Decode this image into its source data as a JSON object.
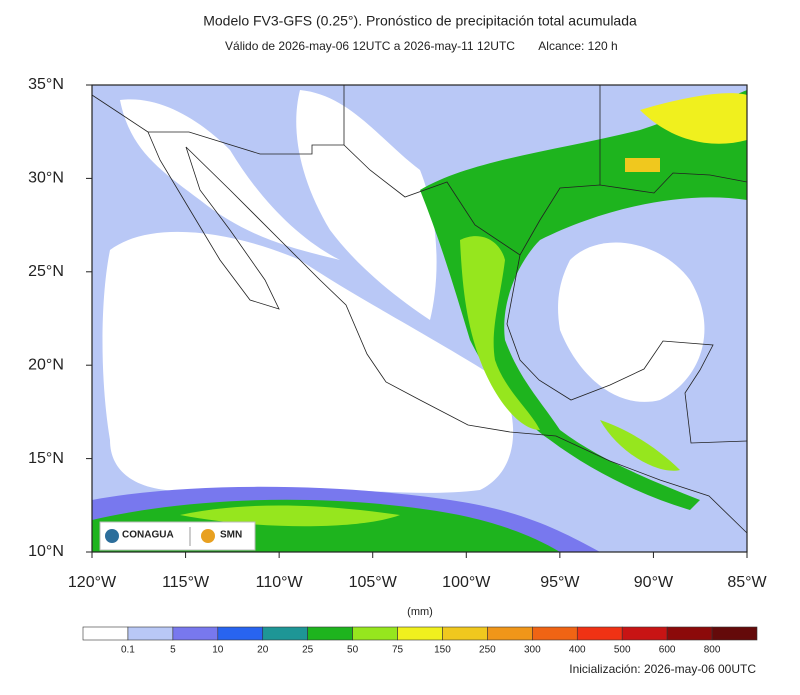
{
  "header": {
    "title": "Modelo FV3-GFS (0.25°). Pronóstico de precipitación total acumulada",
    "valid": "Válido de 2026-may-06 12UTC a 2026-may-11 12UTC",
    "range": "Alcance: 120 h"
  },
  "map": {
    "lat_labels": [
      "35°N",
      "30°N",
      "25°N",
      "20°N",
      "15°N",
      "10°N"
    ],
    "lon_labels": [
      "120°W",
      "115°W",
      "110°W",
      "105°W",
      "100°W",
      "95°W",
      "90°W",
      "85°W"
    ],
    "logos": [
      "CONAGUA",
      "SMN"
    ]
  },
  "legend": {
    "unit": "(mm)",
    "colors": [
      "#ffffff",
      "#b9c8f6",
      "#7878ee",
      "#2864f0",
      "#1e9696",
      "#1eb41e",
      "#96e61e",
      "#f0f01e",
      "#f0c81e",
      "#f09619",
      "#f06414",
      "#f03214",
      "#c81414",
      "#8c0a0a",
      "#640a0a"
    ],
    "labels": [
      "0.1",
      "5",
      "10",
      "20",
      "25",
      "50",
      "75",
      "150",
      "250",
      "300",
      "400",
      "500",
      "600",
      "800"
    ]
  },
  "footer": {
    "init": "Inicialización: 2026-may-06 00UTC"
  }
}
